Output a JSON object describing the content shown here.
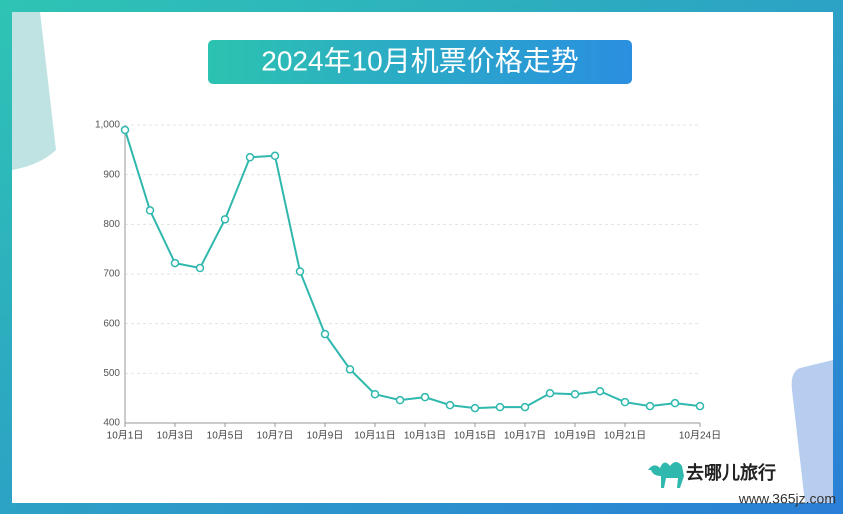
{
  "chart_data": {
    "type": "line",
    "title": "2024年10月机票价格走势",
    "categories": [
      "10月1日",
      null,
      "10月3日",
      null,
      "10月5日",
      null,
      "10月7日",
      null,
      "10月9日",
      null,
      "10月11日",
      null,
      "10月13日",
      null,
      "10月15日",
      null,
      "10月17日",
      null,
      "10月19日",
      null,
      "10月21日",
      null,
      null,
      "10月24日"
    ],
    "series": [
      {
        "name": "机票价格",
        "color": "#2fb8ad",
        "values": [
          990,
          828,
          722,
          712,
          810,
          935,
          938,
          705,
          579,
          508,
          458,
          446,
          452,
          436,
          430,
          432,
          432,
          460,
          458,
          464,
          442,
          434,
          440,
          434
        ]
      }
    ],
    "ylim": [
      400,
      1000
    ],
    "yticks": [
      400,
      500,
      600,
      700,
      800,
      900,
      {
        "value": 1000,
        "label": "1,000"
      }
    ],
    "grid": true
  },
  "brand": "去哪儿旅行",
  "watermark": "www.365jz.com"
}
